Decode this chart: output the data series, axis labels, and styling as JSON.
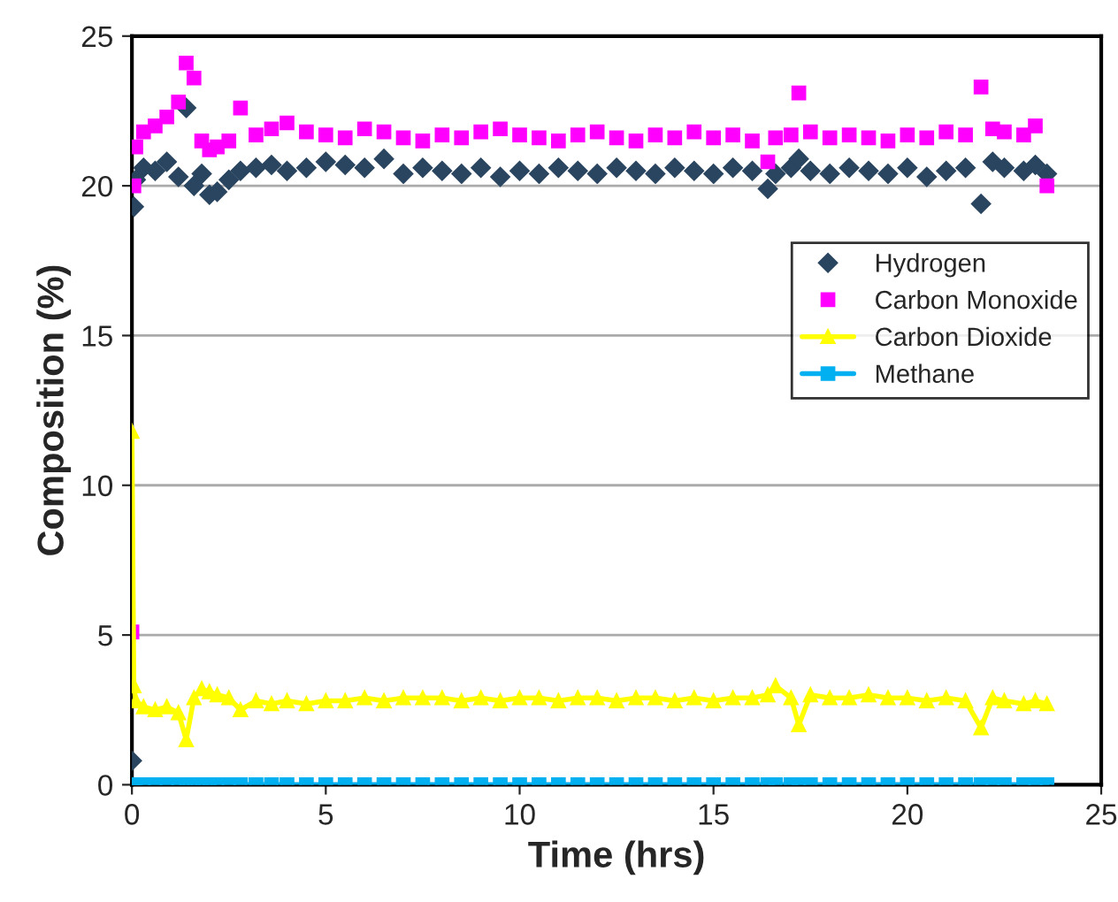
{
  "chart_data": {
    "type": "scatter",
    "xlabel": "Time (hrs)",
    "ylabel": "Composition (%)",
    "xlim": [
      0,
      25
    ],
    "xticks": [
      0,
      5,
      10,
      15,
      20,
      25
    ],
    "ylim": [
      0,
      25
    ],
    "yticks": [
      0,
      5,
      10,
      15,
      20,
      25
    ],
    "grid": "y",
    "legend": "right",
    "x": [
      0,
      0.05,
      0.1,
      0.3,
      0.6,
      0.9,
      1.2,
      1.4,
      1.6,
      1.8,
      2.0,
      2.2,
      2.5,
      2.8,
      3.2,
      3.6,
      4.0,
      4.5,
      5.0,
      5.5,
      6.0,
      6.5,
      7.0,
      7.5,
      8.0,
      8.5,
      9.0,
      9.5,
      10,
      10.5,
      11,
      11.5,
      12,
      12.5,
      13,
      13.5,
      14,
      14.5,
      15,
      15.5,
      16,
      16.4,
      16.6,
      17,
      17.2,
      17.5,
      18,
      18.5,
      19,
      19.5,
      20,
      20.5,
      21,
      21.5,
      21.9,
      22.2,
      22.5,
      23,
      23.3,
      23.6
    ],
    "series": [
      {
        "name": "Hydrogen",
        "color": "#2a4560",
        "marker": "diamond",
        "values": [
          0.8,
          19.3,
          20.2,
          20.6,
          20.5,
          20.8,
          20.3,
          22.6,
          20.0,
          20.4,
          19.7,
          19.8,
          20.2,
          20.5,
          20.6,
          20.7,
          20.5,
          20.6,
          20.8,
          20.7,
          20.6,
          20.9,
          20.4,
          20.6,
          20.5,
          20.4,
          20.6,
          20.3,
          20.5,
          20.4,
          20.6,
          20.5,
          20.4,
          20.6,
          20.5,
          20.4,
          20.6,
          20.5,
          20.4,
          20.6,
          20.5,
          19.9,
          20.4,
          20.6,
          20.9,
          20.5,
          20.4,
          20.6,
          20.5,
          20.4,
          20.6,
          20.3,
          20.5,
          20.6,
          19.4,
          20.8,
          20.6,
          20.5,
          20.7,
          20.4
        ]
      },
      {
        "name": "Carbon Monoxide",
        "color": "#ff00ff",
        "marker": "square",
        "values": [
          5.1,
          20.0,
          21.3,
          21.8,
          22.0,
          22.3,
          22.8,
          24.1,
          23.6,
          21.5,
          21.2,
          21.3,
          21.5,
          22.6,
          21.7,
          21.9,
          22.1,
          21.8,
          21.7,
          21.6,
          21.9,
          21.8,
          21.6,
          21.5,
          21.7,
          21.6,
          21.8,
          21.9,
          21.7,
          21.6,
          21.5,
          21.7,
          21.8,
          21.6,
          21.5,
          21.7,
          21.6,
          21.8,
          21.6,
          21.7,
          21.5,
          20.8,
          21.6,
          21.7,
          23.1,
          21.8,
          21.6,
          21.7,
          21.6,
          21.5,
          21.7,
          21.6,
          21.8,
          21.7,
          23.3,
          21.9,
          21.8,
          21.7,
          22.0,
          20.0
        ]
      },
      {
        "name": "Carbon Dioxide",
        "color": "#ffff00",
        "type": "line",
        "marker": "triangle",
        "values": [
          11.8,
          3.3,
          2.8,
          2.6,
          2.5,
          2.6,
          2.4,
          1.5,
          2.9,
          3.2,
          3.1,
          3.0,
          2.9,
          2.5,
          2.8,
          2.7,
          2.8,
          2.7,
          2.8,
          2.8,
          2.9,
          2.8,
          2.9,
          2.9,
          2.9,
          2.8,
          2.9,
          2.8,
          2.9,
          2.9,
          2.8,
          2.9,
          2.9,
          2.8,
          2.9,
          2.9,
          2.8,
          2.9,
          2.8,
          2.9,
          2.9,
          3.0,
          3.3,
          2.9,
          2.0,
          3.0,
          2.9,
          2.9,
          3.0,
          2.9,
          2.9,
          2.8,
          2.9,
          2.8,
          1.9,
          2.9,
          2.8,
          2.7,
          2.8,
          2.7
        ]
      },
      {
        "name": "Methane",
        "color": "#00b0f0",
        "type": "line",
        "marker": "square",
        "values": [
          0,
          0,
          0,
          0,
          0,
          0,
          0,
          0,
          0,
          0,
          0,
          0,
          0,
          0,
          0,
          0,
          0,
          0,
          0,
          0,
          0,
          0,
          0,
          0,
          0,
          0,
          0,
          0,
          0,
          0,
          0,
          0,
          0,
          0,
          0,
          0,
          0,
          0,
          0,
          0,
          0,
          0,
          0,
          0,
          0,
          0,
          0,
          0,
          0,
          0,
          0,
          0,
          0,
          0,
          0,
          0,
          0,
          0,
          0,
          0
        ]
      }
    ]
  }
}
